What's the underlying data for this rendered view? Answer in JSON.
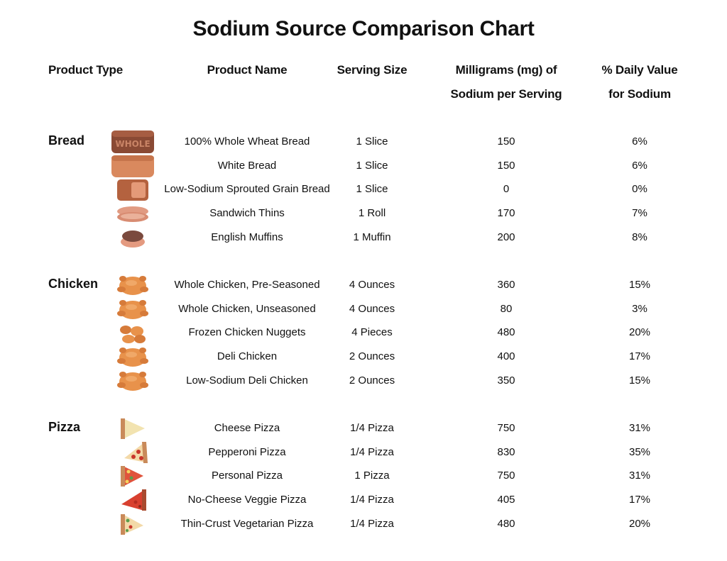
{
  "title": "Sodium Source Comparison Chart",
  "headers": {
    "type": "Product Type",
    "name": "Product Name",
    "serving": "Serving Size",
    "mg_line1": "Milligrams (mg) of",
    "mg_line2": "Sodium per Serving",
    "dv_line1": "% Daily Value",
    "dv_line2": "for Sodium"
  },
  "bread_icon_text": "WHOLE",
  "groups": [
    {
      "name": "Bread",
      "rows": [
        {
          "icon": "whole-wheat-loaf-icon",
          "name": "100% Whole Wheat Bread",
          "serving": "1 Slice",
          "mg": "150",
          "dv": "6%"
        },
        {
          "icon": "white-bread-loaf-icon",
          "name": "White Bread",
          "serving": "1 Slice",
          "mg": "150",
          "dv": "6%"
        },
        {
          "icon": "sprouted-bread-slice-icon",
          "name": "Low-Sodium Sprouted Grain Bread",
          "serving": "1 Slice",
          "mg": "0",
          "dv": "0%"
        },
        {
          "icon": "sandwich-thins-icon",
          "name": "Sandwich Thins",
          "serving": "1 Roll",
          "mg": "170",
          "dv": "7%"
        },
        {
          "icon": "english-muffin-icon",
          "name": "English Muffins",
          "serving": "1 Muffin",
          "mg": "200",
          "dv": "8%"
        }
      ]
    },
    {
      "name": "Chicken",
      "rows": [
        {
          "icon": "roast-chicken-icon",
          "name": "Whole Chicken, Pre-Seasoned",
          "serving": "4 Ounces",
          "mg": "360",
          "dv": "15%"
        },
        {
          "icon": "roast-chicken-icon",
          "name": "Whole Chicken, Unseasoned",
          "serving": "4 Ounces",
          "mg": "80",
          "dv": "3%"
        },
        {
          "icon": "chicken-nuggets-icon",
          "name": "Frozen Chicken Nuggets",
          "serving": "4 Pieces",
          "mg": "480",
          "dv": "20%"
        },
        {
          "icon": "roast-chicken-icon",
          "name": "Deli Chicken",
          "serving": "2 Ounces",
          "mg": "400",
          "dv": "17%"
        },
        {
          "icon": "roast-chicken-icon",
          "name": "Low-Sodium Deli Chicken",
          "serving": "2 Ounces",
          "mg": "350",
          "dv": "15%"
        }
      ]
    },
    {
      "name": "Pizza",
      "rows": [
        {
          "icon": "cheese-pizza-slice-icon",
          "name": "Cheese Pizza",
          "serving": "1/4 Pizza",
          "mg": "750",
          "dv": "31%"
        },
        {
          "icon": "pepperoni-pizza-slice-icon",
          "name": "Pepperoni Pizza",
          "serving": "1/4 Pizza",
          "mg": "830",
          "dv": "35%"
        },
        {
          "icon": "personal-pizza-slice-icon",
          "name": "Personal Pizza",
          "serving": "1 Pizza",
          "mg": "750",
          "dv": "31%"
        },
        {
          "icon": "veggie-pizza-slice-icon",
          "name": "No-Cheese Veggie Pizza",
          "serving": "1/4 Pizza",
          "mg": "405",
          "dv": "17%"
        },
        {
          "icon": "thin-crust-pizza-slice-icon",
          "name": "Thin-Crust Vegetarian Pizza",
          "serving": "1/4 Pizza",
          "mg": "480",
          "dv": "20%"
        }
      ]
    }
  ]
}
